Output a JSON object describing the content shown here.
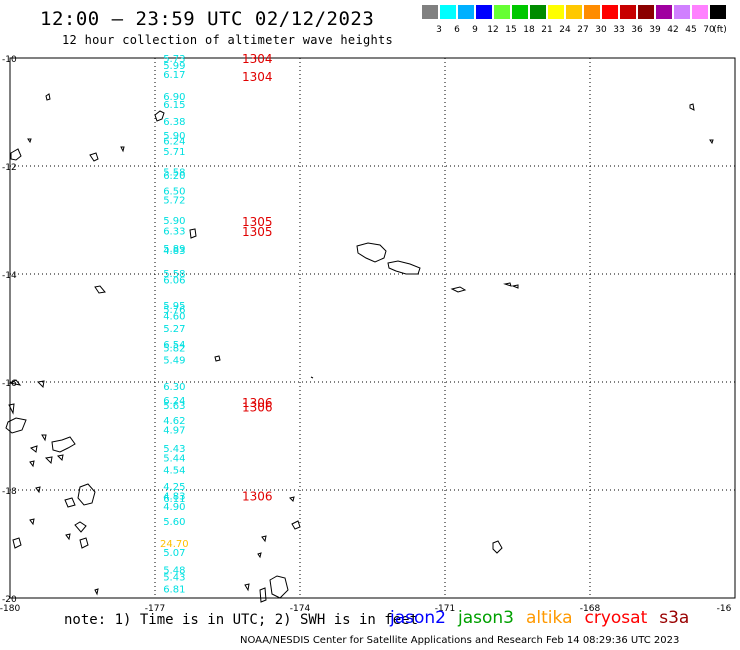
{
  "header": {
    "title": "12:00 – 23:59 UTC 02/12/2023",
    "subtitle": "12 hour collection of altimeter wave heights"
  },
  "scale": {
    "unit": "(ft)",
    "swatches": [
      {
        "color": "#808080",
        "label": "3"
      },
      {
        "color": "#00ffff",
        "label": "6"
      },
      {
        "color": "#00b0ff",
        "label": "9"
      },
      {
        "color": "#0000ff",
        "label": "12"
      },
      {
        "color": "#66ff33",
        "label": "15"
      },
      {
        "color": "#00c800",
        "label": "18"
      },
      {
        "color": "#008c00",
        "label": "21"
      },
      {
        "color": "#ffff00",
        "label": "24"
      },
      {
        "color": "#ffc800",
        "label": "27"
      },
      {
        "color": "#ff8c00",
        "label": "30"
      },
      {
        "color": "#ff0000",
        "label": "33"
      },
      {
        "color": "#c80000",
        "label": "36"
      },
      {
        "color": "#8b0000",
        "label": "39"
      },
      {
        "color": "#a000a0",
        "label": "42"
      },
      {
        "color": "#d080ff",
        "label": "45"
      },
      {
        "color": "#ff80ff",
        "label": "70"
      },
      {
        "color": "#000000",
        "label": ""
      }
    ]
  },
  "map": {
    "lat_labels": [
      "-10",
      "-12",
      "-14",
      "-16",
      "-18",
      "-20"
    ],
    "lon_labels": [
      "-180",
      "-177",
      "-174",
      "-171",
      "-168",
      "-16"
    ]
  },
  "observations": [
    {
      "v": "5.73",
      "c": "#00e0e0",
      "lat": -10.0,
      "lon": -176.6
    },
    {
      "v": "5.99",
      "c": "#00e0e0",
      "lat": -10.13,
      "lon": -176.6
    },
    {
      "v": "6.17",
      "c": "#00e0e0",
      "lat": -10.3,
      "lon": -176.6
    },
    {
      "v": "6.90",
      "c": "#00e0e0",
      "lat": -10.7,
      "lon": -176.6
    },
    {
      "v": "6.15",
      "c": "#00e0e0",
      "lat": -10.85,
      "lon": -176.6
    },
    {
      "v": "6.38",
      "c": "#00e0e0",
      "lat": -11.17,
      "lon": -176.6
    },
    {
      "v": "5.90",
      "c": "#00e0e0",
      "lat": -11.43,
      "lon": -176.6
    },
    {
      "v": "6.24",
      "c": "#00e0e0",
      "lat": -11.53,
      "lon": -176.6
    },
    {
      "v": "5.71",
      "c": "#00e0e0",
      "lat": -11.72,
      "lon": -176.6
    },
    {
      "v": "5.58",
      "c": "#00e0e0",
      "lat": -12.1,
      "lon": -176.6
    },
    {
      "v": "6.20",
      "c": "#00e0e0",
      "lat": -12.17,
      "lon": -176.6
    },
    {
      "v": "6.50",
      "c": "#00e0e0",
      "lat": -12.45,
      "lon": -176.6
    },
    {
      "v": "5.72",
      "c": "#00e0e0",
      "lat": -12.62,
      "lon": -176.6
    },
    {
      "v": "5.90",
      "c": "#00e0e0",
      "lat": -13.0,
      "lon": -176.6
    },
    {
      "v": "6.33",
      "c": "#00e0e0",
      "lat": -13.19,
      "lon": -176.6
    },
    {
      "v": "5.89",
      "c": "#00e0e0",
      "lat": -13.52,
      "lon": -176.6
    },
    {
      "v": "4.83",
      "c": "#00e0e0",
      "lat": -13.56,
      "lon": -176.6
    },
    {
      "v": "5.58",
      "c": "#00e0e0",
      "lat": -13.98,
      "lon": -176.6
    },
    {
      "v": "6.06",
      "c": "#00e0e0",
      "lat": -14.1,
      "lon": -176.6
    },
    {
      "v": "5.95",
      "c": "#00e0e0",
      "lat": -14.57,
      "lon": -176.6
    },
    {
      "v": "5.76",
      "c": "#00e0e0",
      "lat": -14.65,
      "lon": -176.6
    },
    {
      "v": "4.60",
      "c": "#00e0e0",
      "lat": -14.77,
      "lon": -176.6
    },
    {
      "v": "5.27",
      "c": "#00e0e0",
      "lat": -15.0,
      "lon": -176.6
    },
    {
      "v": "6.54",
      "c": "#00e0e0",
      "lat": -15.3,
      "lon": -176.6
    },
    {
      "v": "5.82",
      "c": "#00e0e0",
      "lat": -15.36,
      "lon": -176.6
    },
    {
      "v": "5.49",
      "c": "#00e0e0",
      "lat": -15.58,
      "lon": -176.6
    },
    {
      "v": "6.30",
      "c": "#00e0e0",
      "lat": -16.07,
      "lon": -176.6
    },
    {
      "v": "6.24",
      "c": "#00e0e0",
      "lat": -16.33,
      "lon": -176.6
    },
    {
      "v": "5.63",
      "c": "#00e0e0",
      "lat": -16.43,
      "lon": -176.6
    },
    {
      "v": "4.62",
      "c": "#00e0e0",
      "lat": -16.7,
      "lon": -176.6
    },
    {
      "v": "4.97",
      "c": "#00e0e0",
      "lat": -16.88,
      "lon": -176.6
    },
    {
      "v": "5.43",
      "c": "#00e0e0",
      "lat": -17.22,
      "lon": -176.6
    },
    {
      "v": "5.44",
      "c": "#00e0e0",
      "lat": -17.4,
      "lon": -176.6
    },
    {
      "v": "4.54",
      "c": "#00e0e0",
      "lat": -17.62,
      "lon": -176.6
    },
    {
      "v": "4.25",
      "c": "#00e0e0",
      "lat": -17.93,
      "lon": -176.6
    },
    {
      "v": "4.83",
      "c": "#00e0e0",
      "lat": -18.1,
      "lon": -176.6
    },
    {
      "v": "6.11",
      "c": "#00e0e0",
      "lat": -18.15,
      "lon": -176.6
    },
    {
      "v": "4.90",
      "c": "#00e0e0",
      "lat": -18.3,
      "lon": -176.6
    },
    {
      "v": "5.60",
      "c": "#00e0e0",
      "lat": -18.57,
      "lon": -176.6
    },
    {
      "v": "24.70",
      "c": "#ffc000",
      "lat": -18.98,
      "lon": -176.6
    },
    {
      "v": "5.07",
      "c": "#00e0e0",
      "lat": -19.15,
      "lon": -176.6
    },
    {
      "v": "5.48",
      "c": "#00e0e0",
      "lat": -19.47,
      "lon": -176.6
    },
    {
      "v": "5.43",
      "c": "#00e0e0",
      "lat": -19.6,
      "lon": -176.6
    },
    {
      "v": "6.81",
      "c": "#00e0e0",
      "lat": -19.82,
      "lon": -176.6
    }
  ],
  "time_labels": [
    {
      "t": "1304",
      "lat": -10.0
    },
    {
      "t": "1304",
      "lat": -10.33
    },
    {
      "t": "1305",
      "lat": -13.02
    },
    {
      "t": "1305",
      "lat": -13.2
    },
    {
      "t": "1306",
      "lat": -16.37
    },
    {
      "t": "1306",
      "lat": -16.45
    },
    {
      "t": "1306",
      "lat": -18.1
    }
  ],
  "footer": {
    "note": "note: 1) Time is in UTC; 2) SWH is in feet",
    "satellites": [
      {
        "name": "jason2",
        "color": "#0000ff"
      },
      {
        "name": "jason3",
        "color": "#00a000"
      },
      {
        "name": "altika",
        "color": "#ff9900"
      },
      {
        "name": "cryosat",
        "color": "#ff0000"
      },
      {
        "name": "s3a",
        "color": "#990000"
      }
    ],
    "credit": "NOAA/NESDIS Center for Satellite Applications and Research   Feb 14 08:29:36 UTC 2023"
  }
}
